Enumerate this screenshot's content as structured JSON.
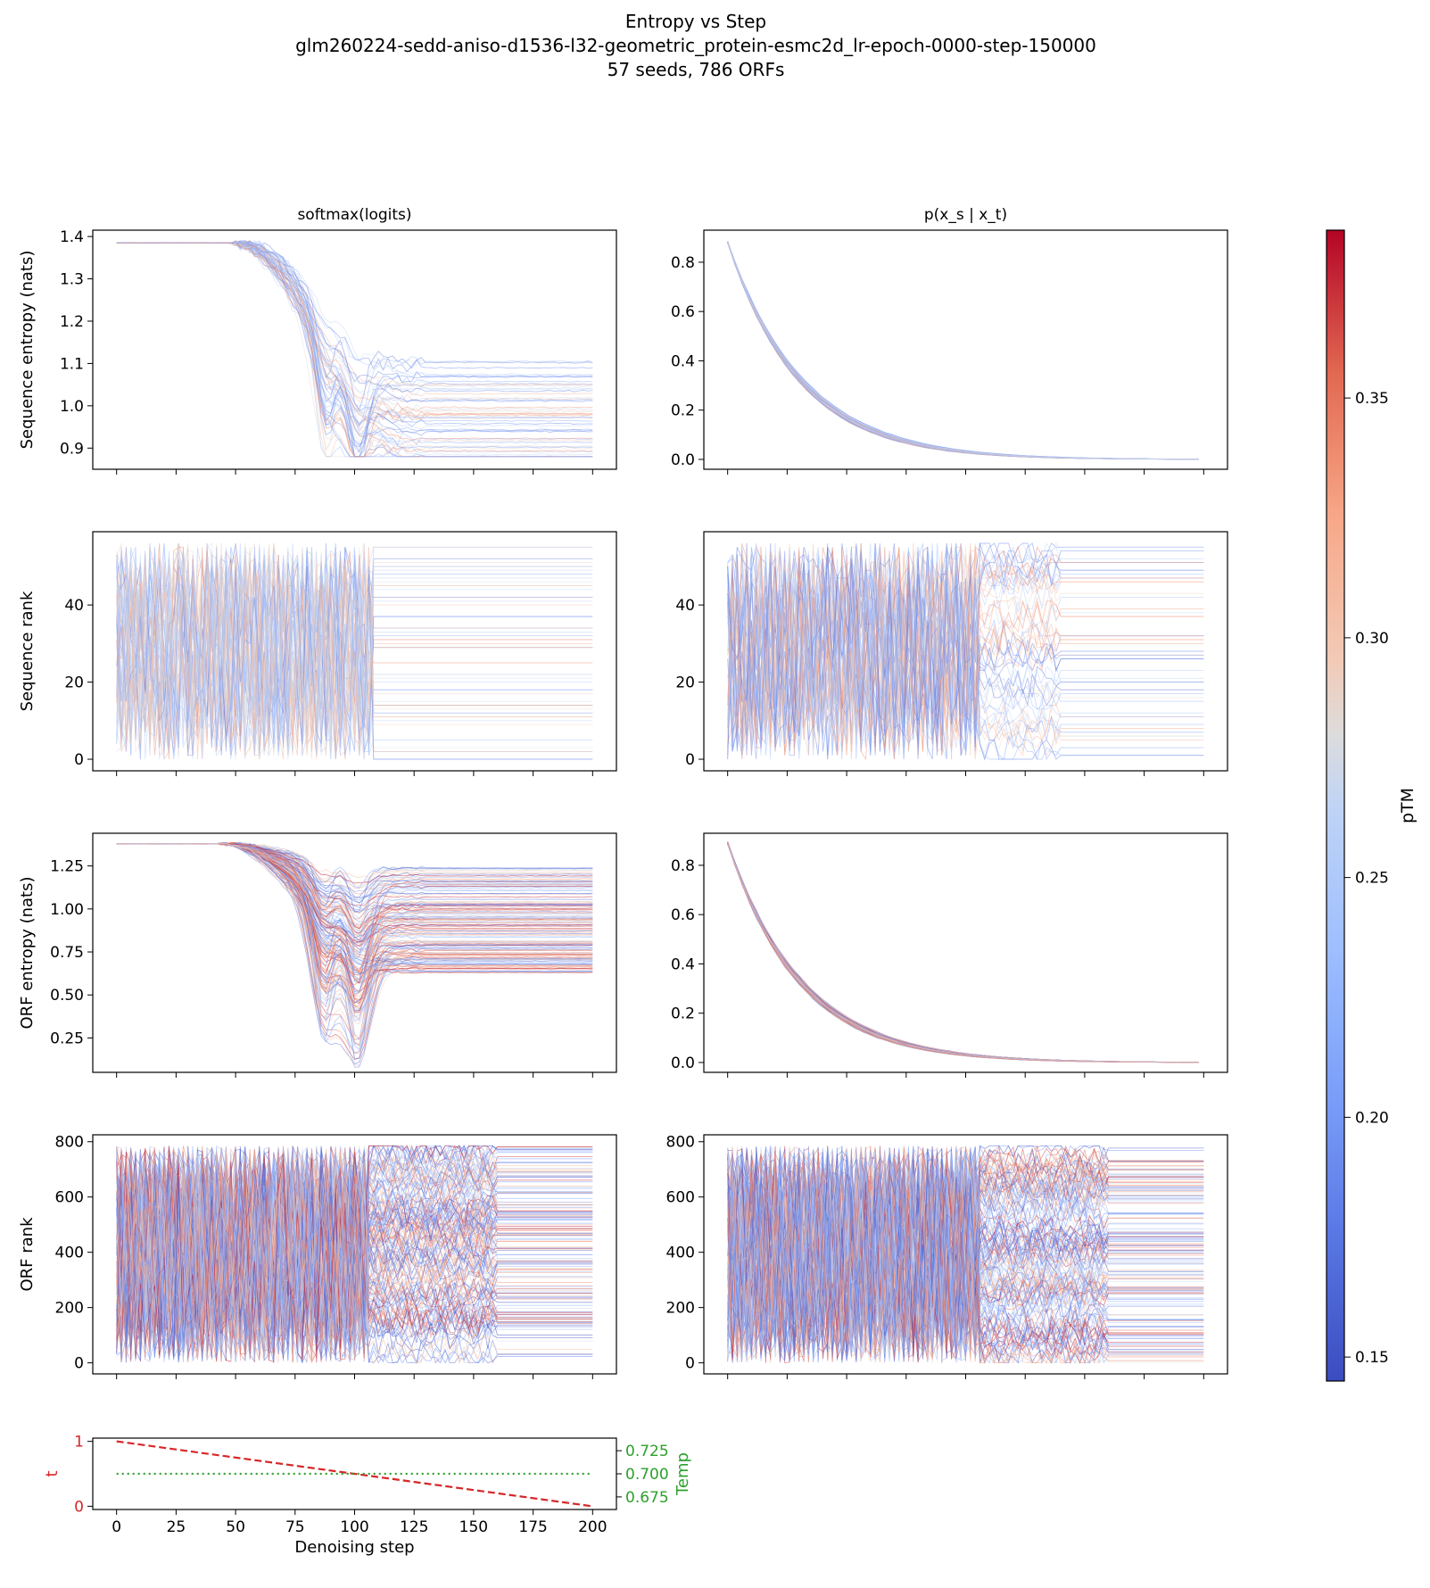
{
  "figure": {
    "title_lines": [
      "Entropy vs Step",
      "glm260224-sedd-aniso-d1536-l32-geometric_protein-esmc2d_lr-epoch-0000-step-150000",
      "57 seeds, 786 ORFs"
    ]
  },
  "chart_data": [
    {
      "id": "seq_entropy_logits",
      "type": "line",
      "title": "softmax(logits)",
      "ylabel": "Sequence entropy (nats)",
      "xlim": [
        -10,
        210
      ],
      "ylim": [
        0.85,
        1.415
      ],
      "yticks": [
        0.9,
        1.0,
        1.1,
        1.2,
        1.3,
        1.4
      ],
      "ytick_labels": [
        "0.9",
        "1.0",
        "1.1",
        "1.2",
        "1.3",
        "1.4"
      ],
      "xticks": [
        0,
        25,
        50,
        75,
        100,
        125,
        150,
        175,
        200
      ],
      "series_summary": {
        "count": 57,
        "start": 1.385,
        "plateau_until": 55,
        "dip_steps": [
          88,
          101
        ],
        "dip_min": 0.88,
        "final_range": [
          0.87,
          1.11
        ]
      }
    },
    {
      "id": "seq_entropy_pxs",
      "type": "line",
      "title": "p(x_s | x_t)",
      "ylabel": "",
      "xlim": [
        -10,
        210
      ],
      "ylim": [
        -0.04,
        0.93
      ],
      "yticks": [
        0.0,
        0.2,
        0.4,
        0.6,
        0.8
      ],
      "ytick_labels": [
        "0.0",
        "0.2",
        "0.4",
        "0.6",
        "0.8"
      ],
      "xticks": [
        0,
        25,
        50,
        75,
        100,
        125,
        150,
        175,
        200
      ],
      "series_summary": {
        "count": 57,
        "start": 0.88,
        "end": 0.0,
        "curve": "decay"
      }
    },
    {
      "id": "seq_rank_logits",
      "type": "line",
      "title": "",
      "ylabel": "Sequence rank",
      "xlim": [
        -10,
        210
      ],
      "ylim": [
        -3,
        59
      ],
      "yticks": [
        0,
        20,
        40
      ],
      "ytick_labels": [
        "0",
        "20",
        "40"
      ],
      "xticks": [
        0,
        25,
        50,
        75,
        100,
        125,
        150,
        175,
        200
      ],
      "series_summary": {
        "count": 57,
        "rank_range": [
          0,
          56
        ],
        "chaotic_until": 108,
        "stable_after": 108
      }
    },
    {
      "id": "seq_rank_pxs",
      "type": "line",
      "title": "",
      "ylabel": "",
      "xlim": [
        -10,
        210
      ],
      "ylim": [
        -3,
        59
      ],
      "yticks": [
        0,
        20,
        40
      ],
      "ytick_labels": [
        "0",
        "20",
        "40"
      ],
      "xticks": [
        0,
        25,
        50,
        75,
        100,
        125,
        150,
        175,
        200
      ],
      "series_summary": {
        "count": 57,
        "rank_range": [
          0,
          56
        ],
        "chaotic_until": 105,
        "stable_after": 140
      }
    },
    {
      "id": "orf_entropy_logits",
      "type": "line",
      "title": "",
      "ylabel": "ORF entropy (nats)",
      "xlim": [
        -10,
        210
      ],
      "ylim": [
        0.05,
        1.44
      ],
      "yticks": [
        0.25,
        0.5,
        0.75,
        1.0,
        1.25
      ],
      "ytick_labels": [
        "0.25",
        "0.50",
        "0.75",
        "1.00",
        "1.25"
      ],
      "xticks": [
        0,
        25,
        50,
        75,
        100,
        125,
        150,
        175,
        200
      ],
      "series_summary": {
        "count": 786,
        "start": 1.38,
        "plateau_until": 50,
        "dip_steps": [
          87,
          101
        ],
        "dip_min": 0.08,
        "final_range": [
          0.62,
          1.24
        ]
      }
    },
    {
      "id": "orf_entropy_pxs",
      "type": "line",
      "title": "",
      "ylabel": "",
      "xlim": [
        -10,
        210
      ],
      "ylim": [
        -0.04,
        0.93
      ],
      "yticks": [
        0.0,
        0.2,
        0.4,
        0.6,
        0.8
      ],
      "ytick_labels": [
        "0.0",
        "0.2",
        "0.4",
        "0.6",
        "0.8"
      ],
      "xticks": [
        0,
        25,
        50,
        75,
        100,
        125,
        150,
        175,
        200
      ],
      "series_summary": {
        "count": 786,
        "start": 0.89,
        "end": 0.0,
        "curve": "decay"
      }
    },
    {
      "id": "orf_rank_logits",
      "type": "line",
      "title": "",
      "ylabel": "ORF rank",
      "xlim": [
        -10,
        210
      ],
      "ylim": [
        -40,
        825
      ],
      "yticks": [
        0,
        200,
        400,
        600,
        800
      ],
      "ytick_labels": [
        "0",
        "200",
        "400",
        "600",
        "800"
      ],
      "xticks": [
        0,
        25,
        50,
        75,
        100,
        125,
        150,
        175,
        200
      ],
      "series_summary": {
        "count": 786,
        "rank_range": [
          0,
          785
        ],
        "chaotic_until": 105
      }
    },
    {
      "id": "orf_rank_pxs",
      "type": "line",
      "title": "",
      "ylabel": "",
      "xlim": [
        -10,
        210
      ],
      "ylim": [
        -40,
        825
      ],
      "yticks": [
        0,
        200,
        400,
        600,
        800
      ],
      "ytick_labels": [
        "0",
        "200",
        "400",
        "600",
        "800"
      ],
      "xticks": [
        0,
        25,
        50,
        75,
        100,
        125,
        150,
        175,
        200
      ],
      "series_summary": {
        "count": 786,
        "rank_range": [
          0,
          785
        ],
        "chaotic_until": 105
      }
    },
    {
      "id": "schedule",
      "type": "line",
      "title": "",
      "xlabel": "Denoising step",
      "ylabel": "t",
      "ylabel_right": "Temp",
      "xlim": [
        -10,
        210
      ],
      "ylim": [
        -0.05,
        1.05
      ],
      "ylim_right": [
        0.6614,
        0.7386
      ],
      "xticks": [
        0,
        25,
        50,
        75,
        100,
        125,
        150,
        175,
        200
      ],
      "xtick_labels": [
        "0",
        "25",
        "50",
        "75",
        "100",
        "125",
        "150",
        "175",
        "200"
      ],
      "yticks": [
        0,
        1
      ],
      "ytick_labels": [
        "0",
        "1"
      ],
      "yticks_right": [
        0.675,
        0.7,
        0.725
      ],
      "ytick_labels_right": [
        "0.675",
        "0.700",
        "0.725"
      ],
      "series": [
        {
          "name": "t",
          "x": [
            0,
            200
          ],
          "values": [
            1.0,
            0.0
          ],
          "color": "#d62728",
          "style": "dashed"
        },
        {
          "name": "Temp",
          "x": [
            0,
            200
          ],
          "values": [
            0.7,
            0.7
          ],
          "color": "#2ca02c",
          "style": "dotted",
          "axis": "right"
        }
      ]
    }
  ],
  "colorbar": {
    "label": "pTM",
    "colormap": "coolwarm",
    "range": [
      0.145,
      0.385
    ],
    "ticks": [
      0.15,
      0.2,
      0.25,
      0.3,
      0.35
    ],
    "tick_labels": [
      "0.15",
      "0.20",
      "0.25",
      "0.30",
      "0.35"
    ],
    "low_color": "#3b4cc0",
    "mid_color": "#dddddd",
    "high_color": "#b40426"
  }
}
